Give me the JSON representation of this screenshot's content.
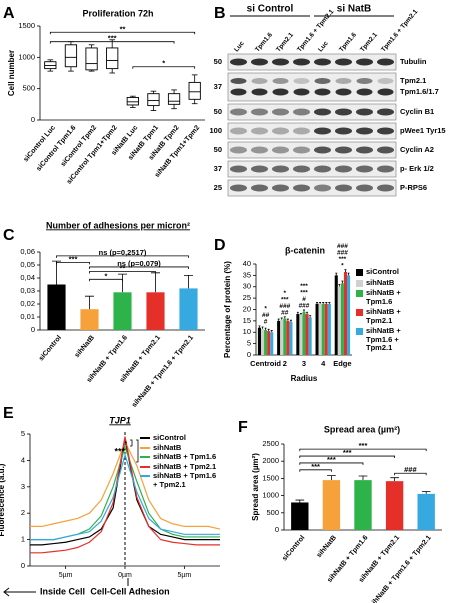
{
  "chart_data": [
    {
      "type": "box",
      "letter": "A",
      "title": "Proliferation 72h",
      "ylabel": "Cell number",
      "categories": [
        "siControl Luc",
        "siControl Tpm1.6",
        "siControl Tpm2",
        "siControl Tpm1+Tpm2",
        "siNatB Luc",
        "siNatB Tpm1",
        "siNatB Tpm2",
        "siNatB Tpm1+Tpm2"
      ],
      "min": [
        780,
        780,
        780,
        750,
        200,
        150,
        180,
        260
      ],
      "q1": [
        820,
        850,
        800,
        820,
        240,
        230,
        250,
        330
      ],
      "median": [
        870,
        1000,
        900,
        950,
        290,
        310,
        300,
        450
      ],
      "q3": [
        930,
        1200,
        1150,
        1150,
        360,
        420,
        420,
        600
      ],
      "max": [
        960,
        1250,
        1200,
        1280,
        380,
        460,
        480,
        720
      ],
      "ylim": [
        0,
        1500
      ],
      "yticks": [
        0,
        500,
        1000,
        1500
      ],
      "annotations": [
        {
          "text": "**",
          "y": 1400
        },
        {
          "text": "***",
          "y": 1250
        },
        {
          "text": "*",
          "y": 850
        }
      ]
    },
    {
      "type": "bar",
      "letter": "C",
      "title": "Number of adhesions per micron²",
      "categories": [
        "siControl",
        "sihNatB",
        "sihNatB + Tpm1.6",
        "sihNatB + Tpm2.1",
        "sihNatB + Tpm1.6 + Tpm2.1"
      ],
      "values": [
        0.035,
        0.016,
        0.029,
        0.029,
        0.032
      ],
      "errors": [
        0.018,
        0.01,
        0.014,
        0.015,
        0.01
      ],
      "colors": [
        "#000000",
        "#f7a13a",
        "#2db34a",
        "#e5302a",
        "#36a9e1"
      ],
      "ylim": [
        0,
        0.06
      ],
      "yticks": [
        0,
        {
          "value": 0.01,
          "label": "0,01"
        },
        {
          "value": 0.02,
          "label": "0,02"
        },
        {
          "value": 0.03,
          "label": "0,03"
        },
        {
          "value": 0.04,
          "label": "0,04"
        },
        {
          "value": 0.05,
          "label": "0,05"
        },
        {
          "value": 0.06,
          "label": "0,06"
        }
      ],
      "annotations": [
        {
          "text": "ns (p=0,2517)",
          "y": 0.057
        },
        {
          "text": "***",
          "y": 0.052
        },
        {
          "text": "ns (p=0,079)",
          "y": 0.0485
        },
        {
          "text": "**",
          "y": 0.045
        },
        {
          "text": "*",
          "y": 0.039
        }
      ]
    },
    {
      "type": "grouped_bar",
      "letter": "D",
      "title": "β-catenin",
      "ylabel": "Percentage of protein (%)",
      "xlabel": "Radius",
      "categories": [
        "Centroid",
        "2",
        "3",
        "4",
        "Edge"
      ],
      "series": [
        {
          "name": "siControl",
          "color": "#000000",
          "values": [
            12,
            15,
            18,
            22.5,
            35
          ],
          "errors": [
            0.8,
            0.8,
            0.8,
            0.6,
            1.0
          ]
        },
        {
          "name": "sihNatB",
          "color": "#d0d0d0",
          "values": [
            11.5,
            15.5,
            17.5,
            22.5,
            30
          ],
          "errors": [
            0.8,
            0.8,
            0.8,
            0.6,
            1.0
          ]
        },
        {
          "name": "sihNatB + Tpm1.6",
          "color": "#2db34a",
          "values": [
            11,
            16,
            19,
            22.5,
            31.5
          ],
          "errors": [
            0.8,
            0.8,
            0.8,
            0.6,
            1.0
          ]
        },
        {
          "name": "sihNatB + Tpm2.1",
          "color": "#e5302a",
          "values": [
            10.5,
            15,
            18,
            22.5,
            36.5
          ],
          "errors": [
            0.8,
            0.8,
            0.8,
            0.6,
            1.0
          ]
        },
        {
          "name": "sihNatB + Tpm1.6 + Tpm2.1",
          "color": "#36a9e1",
          "values": [
            10,
            14.5,
            16.5,
            22.5,
            35
          ],
          "errors": [
            0.8,
            0.8,
            0.8,
            0.6,
            1.0
          ]
        }
      ],
      "ylim": [
        0,
        40
      ],
      "yticks": [
        0,
        5,
        10,
        15,
        20,
        25,
        30,
        35,
        40
      ],
      "annotations": [
        [
          "#",
          "##",
          "*"
        ],
        [
          "##",
          "###",
          "***",
          "*"
        ],
        [
          "###",
          "#",
          "***",
          "***"
        ],
        [],
        [
          "*",
          "***",
          "###",
          "###"
        ]
      ]
    },
    {
      "type": "line",
      "letter": "E",
      "title": "TJP1",
      "ylabel": "Fluorescence (a.u.)",
      "x": [
        -8,
        -7,
        -6,
        -5,
        -4,
        -3,
        -2,
        -1,
        0,
        1,
        2,
        3,
        4,
        5,
        6,
        7,
        8
      ],
      "series": [
        {
          "name": "siControl",
          "color": "#000000",
          "values": [
            0.8,
            0.8,
            0.85,
            0.9,
            1.0,
            1.1,
            1.4,
            2.2,
            4.8,
            2.5,
            1.5,
            1.2,
            1.1,
            1.0,
            1.0,
            1.0,
            1.0
          ]
        },
        {
          "name": "sihNatB",
          "color": "#f7a13a",
          "values": [
            1.5,
            1.5,
            1.6,
            1.7,
            1.8,
            2.0,
            2.5,
            3.5,
            4.7,
            3.8,
            2.5,
            1.8,
            1.6,
            1.5,
            1.5,
            1.5,
            1.4
          ]
        },
        {
          "name": "sihNatB + Tpm1.6",
          "color": "#2db34a",
          "values": [
            1.0,
            1.0,
            1.0,
            1.1,
            1.2,
            1.4,
            1.9,
            3.0,
            4.5,
            3.2,
            2.0,
            1.4,
            1.2,
            1.1,
            1.1,
            1.1,
            1.1
          ]
        },
        {
          "name": "sihNatB + Tpm2.1",
          "color": "#e5302a",
          "values": [
            0.5,
            0.5,
            0.55,
            0.6,
            0.7,
            0.9,
            1.3,
            2.4,
            4.9,
            2.6,
            1.5,
            1.0,
            0.9,
            0.85,
            0.8,
            0.8,
            0.8
          ]
        },
        {
          "name": "sihNatB + Tpm1.6 + Tpm2.1",
          "color": "#36a9e1",
          "values": [
            1.0,
            1.0,
            1.0,
            1.1,
            1.2,
            1.3,
            1.7,
            2.6,
            4.2,
            2.8,
            1.8,
            1.4,
            1.3,
            1.2,
            1.2,
            1.2,
            1.2
          ]
        }
      ],
      "xlim": [
        -8,
        8
      ],
      "xticks": [
        {
          "value": -5,
          "label": "5µm"
        },
        {
          "value": 0,
          "label": "0µm"
        },
        {
          "value": 5,
          "label": "5µm"
        }
      ],
      "ylim": [
        0,
        5
      ],
      "yticks": [
        0,
        1,
        2,
        3,
        4,
        5
      ],
      "annotations": [
        {
          "text": "***"
        },
        {
          "text": "*"
        }
      ],
      "bottom_labels": [
        "Inside Cell",
        "Cell-Cell Adhesion"
      ]
    },
    {
      "type": "bar",
      "letter": "F",
      "title": "Spread area (µm²)",
      "ylabel": "Spread area (µm²)",
      "categories": [
        "siControl",
        "sihNatB",
        "sihNatB + Tpm1.6",
        "sihNatB + Tpm2.1",
        "sihNatB + Tpm1.6 + Tpm2.1"
      ],
      "values": [
        800,
        1450,
        1450,
        1420,
        1050
      ],
      "errors": [
        70,
        130,
        120,
        100,
        70
      ],
      "colors": [
        "#000000",
        "#f7a13a",
        "#2db34a",
        "#e5302a",
        "#36a9e1"
      ],
      "ylim": [
        0,
        2500
      ],
      "yticks": [
        0,
        500,
        1000,
        1500,
        2000,
        2500
      ],
      "annotations": [
        {
          "text": "***",
          "y": 2350
        },
        {
          "text": "***",
          "y": 2150
        },
        {
          "text": "***",
          "y": 1950
        },
        {
          "text": "***",
          "y": 1750
        },
        {
          "text": "###",
          "y": 1650
        }
      ]
    }
  ],
  "blot": {
    "letter": "B",
    "groups": [
      "si Control",
      "si NatB"
    ],
    "lanes": [
      "Luc",
      "Tpm1.6",
      "Tpm2.1",
      "Tpm1.6 + Tpm2.1",
      "Luc",
      "Tpm1.6",
      "Tpm2.1",
      "Tpm1.6 + Tpm2.1"
    ],
    "rows": [
      {
        "marker": 50,
        "labels": [
          "Tubulin"
        ]
      },
      {
        "marker": 37,
        "labels": [
          "Tpm2.1",
          "Tpm1.6/1.7"
        ]
      },
      {
        "marker": 50,
        "labels": [
          "Cyclin B1"
        ]
      },
      {
        "marker": 100,
        "labels": [
          "pWee1 Tyr15"
        ]
      },
      {
        "marker": 50,
        "labels": [
          "Cyclin A2"
        ]
      },
      {
        "marker": 37,
        "labels": [
          "p- Erk 1/2"
        ]
      },
      {
        "marker": 25,
        "labels": [
          "P-RPS6"
        ]
      }
    ]
  }
}
